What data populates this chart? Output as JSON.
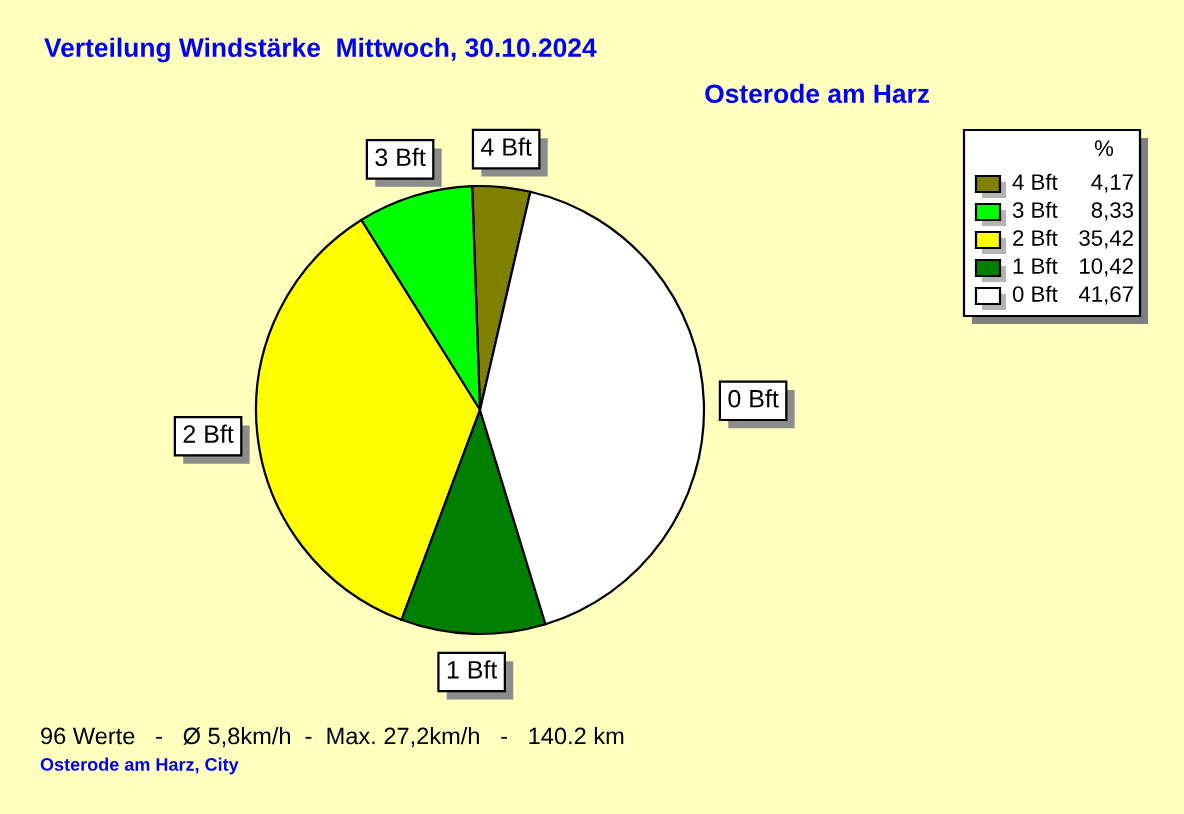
{
  "chart_data": {
    "type": "pie",
    "title": "Verteilung Windstärke  Mittwoch, 30.10.2024",
    "subtitle": "Osterode am Harz",
    "legend_title": "%",
    "categories": [
      "4 Bft",
      "3 Bft",
      "2 Bft",
      "1 Bft",
      "0 Bft"
    ],
    "values": [
      4.17,
      8.33,
      35.42,
      10.42,
      41.67
    ],
    "value_labels": [
      "4,17",
      "8,33",
      "35,42",
      "10,42",
      "41,67"
    ],
    "colors": [
      "#808000",
      "#00ff00",
      "#ffff00",
      "#008000",
      "#ffffff"
    ],
    "legend": "top right",
    "annotations": [
      "96 Werte   -   Ø 5,8km/h  -  Max. 27,2km/h   -   140.2 km",
      "Osterode am Harz, City"
    ]
  }
}
